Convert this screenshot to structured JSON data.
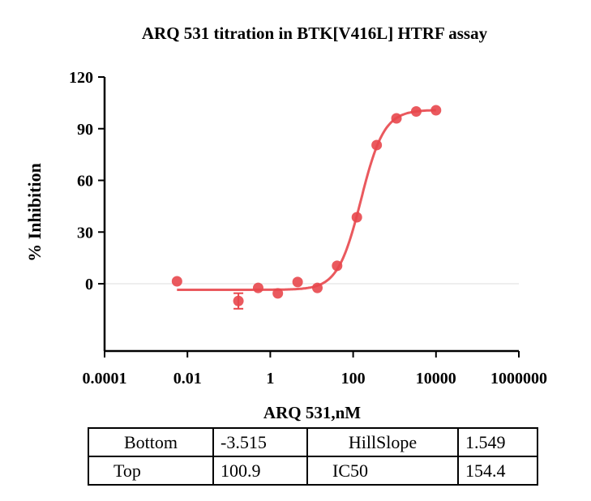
{
  "chart_data": {
    "type": "scatter",
    "title": "ARQ 531 titration in BTK[V416L] HTRF assay",
    "xlabel": "ARQ 531,nM",
    "ylabel": "% Inhibition",
    "xscale": "log",
    "xlim": [
      0.0001,
      1000000
    ],
    "ylim": [
      -40,
      120
    ],
    "xticks": [
      "0.0001",
      "0.01",
      "1",
      "100",
      "10000",
      "1000000"
    ],
    "xtick_values": [
      0.0001,
      0.01,
      1,
      100,
      10000,
      1000000
    ],
    "yticks": [
      "0",
      "30",
      "60",
      "90",
      "120"
    ],
    "ytick_values": [
      0,
      30,
      60,
      90,
      120
    ],
    "color": "#e8474c",
    "points": [
      {
        "x": 0.0056,
        "y": 1.4,
        "err": 0
      },
      {
        "x": 0.17,
        "y": -10,
        "err": 4.5
      },
      {
        "x": 0.51,
        "y": -2.4,
        "err": 0
      },
      {
        "x": 1.52,
        "y": -5.6,
        "err": 0
      },
      {
        "x": 4.57,
        "y": 1.0,
        "err": 0
      },
      {
        "x": 13.7,
        "y": -2.4,
        "err": 0
      },
      {
        "x": 41,
        "y": 10.4,
        "err": 0
      },
      {
        "x": 123,
        "y": 38.6,
        "err": 0
      },
      {
        "x": 370,
        "y": 80.5,
        "err": 0
      },
      {
        "x": 1111,
        "y": 96,
        "err": 0
      },
      {
        "x": 3333,
        "y": 100,
        "err": 0
      },
      {
        "x": 10000,
        "y": 100.7,
        "err": 0
      }
    ],
    "fit": {
      "model": "4PL",
      "bottom": -3.515,
      "top": 100.9,
      "ic50": 154.4,
      "hill": 1.549,
      "xrange": [
        0.0056,
        10000
      ]
    }
  },
  "params_table": [
    [
      "Bottom",
      "-3.515",
      "HillSlope",
      "1.549"
    ],
    [
      "Top",
      "100.9",
      "IC50",
      "154.4"
    ]
  ]
}
